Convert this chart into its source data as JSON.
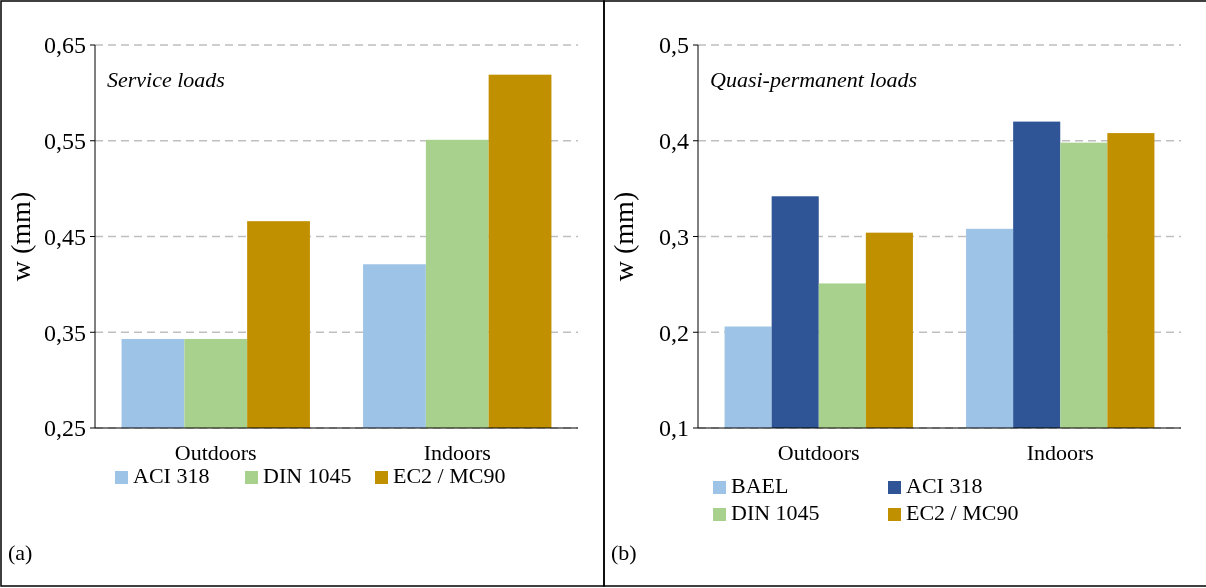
{
  "chart_data": [
    {
      "type": "bar",
      "title": "Service loads",
      "ylabel": "w (mm)",
      "categories": [
        "Outdoors",
        "Indoors"
      ],
      "series": [
        {
          "name": "ACI 318",
          "color": "#9dc3e6",
          "values": [
            0.343,
            0.421
          ]
        },
        {
          "name": "DIN 1045",
          "color": "#a9d18e",
          "values": [
            0.343,
            0.551
          ]
        },
        {
          "name": "EC2 / MC90",
          "color": "#c09000",
          "values": [
            0.466,
            0.619
          ]
        }
      ],
      "ylim": [
        0.25,
        0.65
      ],
      "yticks": [
        {
          "value": 0.25,
          "label": "0,25"
        },
        {
          "value": 0.35,
          "label": "0,35"
        },
        {
          "value": 0.45,
          "label": "0,45"
        },
        {
          "value": 0.55,
          "label": "0,55"
        },
        {
          "value": 0.65,
          "label": "0,65"
        }
      ],
      "grid": "y",
      "legend": "bottom",
      "annotations": [
        "(a)"
      ]
    },
    {
      "type": "bar",
      "title": "Quasi-permanent loads",
      "ylabel": "w (mm)",
      "categories": [
        "Outdoors",
        "Indoors"
      ],
      "series": [
        {
          "name": "BAEL",
          "color": "#9dc3e6",
          "values": [
            0.206,
            0.308
          ]
        },
        {
          "name": "ACI 318",
          "color": "#2f5597",
          "values": [
            0.342,
            0.42
          ]
        },
        {
          "name": "DIN 1045",
          "color": "#a9d18e",
          "values": [
            0.251,
            0.398
          ]
        },
        {
          "name": "EC2 / MC90",
          "color": "#c09000",
          "values": [
            0.304,
            0.408
          ]
        }
      ],
      "ylim": [
        0.1,
        0.5
      ],
      "yticks": [
        {
          "value": 0.1,
          "label": "0,1"
        },
        {
          "value": 0.2,
          "label": "0,2"
        },
        {
          "value": 0.3,
          "label": "0,3"
        },
        {
          "value": 0.4,
          "label": "0,4"
        },
        {
          "value": 0.5,
          "label": "0,5"
        }
      ],
      "grid": "y",
      "legend": "bottom",
      "annotations": [
        "(b)"
      ]
    }
  ]
}
